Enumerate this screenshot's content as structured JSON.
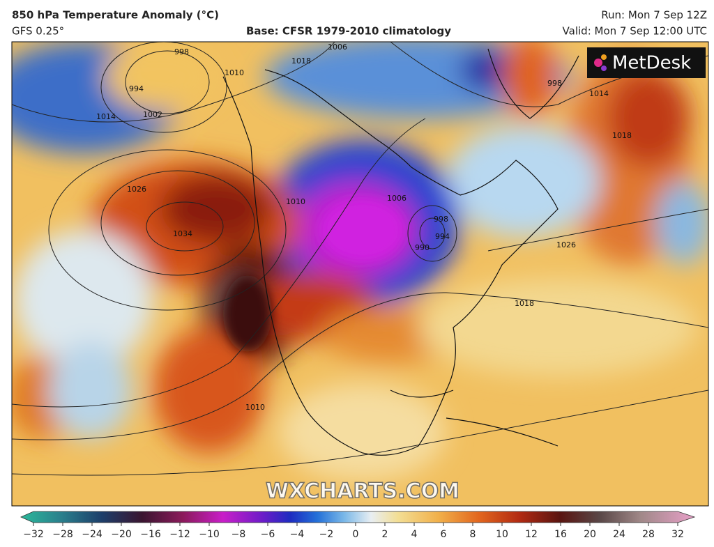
{
  "header": {
    "title": "850 hPa Temperature Anomaly (°C)",
    "model": "GFS 0.25°",
    "base": "Base: CFSR 1979-2010 climatology",
    "run": "Run: Mon 7 Sep 12Z",
    "valid": "Valid: Mon 7 Sep 12:00 UTC"
  },
  "logo": "MetDesk",
  "watermark": "WXCHARTS.COM",
  "isobar_labels": [
    "998",
    "994",
    "1002",
    "1014",
    "1010",
    "1018",
    "1006",
    "998",
    "1014",
    "1018",
    "1026",
    "1034",
    "1010",
    "1006",
    "998",
    "994",
    "990",
    "1026",
    "1018",
    "1010"
  ],
  "colorbar": {
    "ticks": [
      "−32",
      "−28",
      "−24",
      "−20",
      "−16",
      "−12",
      "−10",
      "−8",
      "−6",
      "−4",
      "−2",
      "0",
      "2",
      "4",
      "6",
      "8",
      "10",
      "12",
      "16",
      "20",
      "24",
      "28",
      "32"
    ]
  }
}
